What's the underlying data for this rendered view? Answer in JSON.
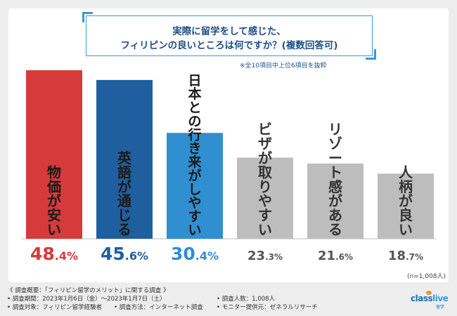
{
  "chart_data": {
    "type": "bar",
    "title": "実際に留学をして感じた、フィリピンの良いところは何ですか？(複数回答可)",
    "title_lines": [
      "実際に留学をして感じた、",
      "フィリピンの良いところは何ですか？(複数回答可)"
    ],
    "subtitle": "※全10項目中上位6項目を抜粋",
    "categories": [
      "物価が安い",
      "英語が通じる",
      "日本との行き来がしやすい",
      "ビザが取りやすい",
      "リゾート感がある",
      "人柄が良い"
    ],
    "values": [
      48.4,
      45.6,
      30.4,
      23.3,
      21.6,
      18.7
    ],
    "value_labels": [
      {
        "int": "48",
        "dec": ".4%"
      },
      {
        "int": "45",
        "dec": ".6%"
      },
      {
        "int": "30",
        "dec": ".4%"
      },
      {
        "int": "23",
        "dec": ".3%"
      },
      {
        "int": "21",
        "dec": ".6%"
      },
      {
        "int": "18",
        "dec": ".7%"
      }
    ],
    "bar_colors": [
      "#d63a3a",
      "#1f5f9f",
      "#2f8fd0",
      "#bdbdbd",
      "#bdbdbd",
      "#bdbdbd"
    ],
    "label_colors": [
      "#d63a3a",
      "#1f5f9f",
      "#2f8fd0",
      "#555555",
      "#555555",
      "#555555"
    ],
    "ylim": [
      0,
      50
    ],
    "xlabel": "",
    "ylabel": "",
    "sample_size": "(n=1,008人)"
  },
  "footer": {
    "survey_overview": "《 調査概要：「フィリピン留学のメリット」に関する調査 》",
    "period": "• 調査期間：2023年1月6日（金）〜2023年1月7日（土）",
    "respondents": "• 調査人数：1,008人",
    "target": "• 調査対象：フィリピン留学経験者",
    "method": "• 調査方法：インターネット調査",
    "provider": "• モニター提供元：ゼネラルリサーチ"
  },
  "logo": {
    "class": "class",
    "live": "live",
    "sub": "留学"
  }
}
